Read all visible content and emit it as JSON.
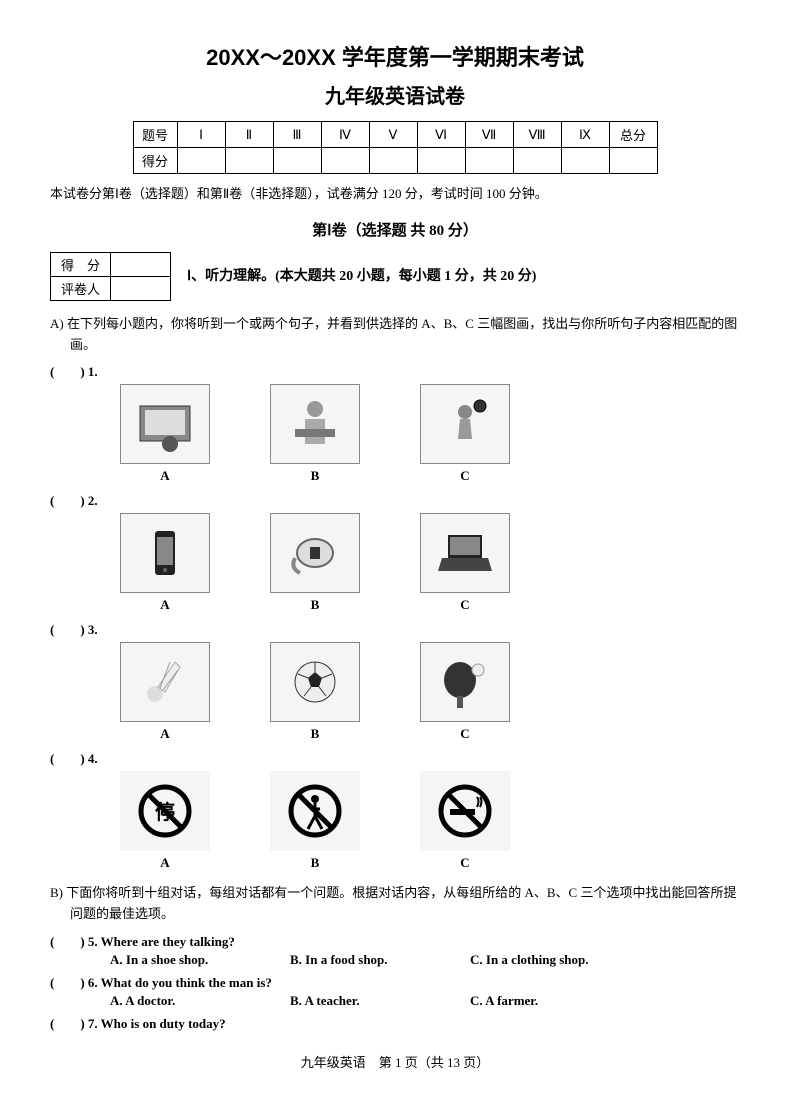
{
  "header": {
    "title_main": "20XX～20XX 学年度第一学期期末考试",
    "title_sub": "九年级英语试卷"
  },
  "score_table": {
    "row1_label": "题号",
    "cols": [
      "Ⅰ",
      "Ⅱ",
      "Ⅲ",
      "Ⅳ",
      "Ⅴ",
      "Ⅵ",
      "Ⅶ",
      "Ⅷ",
      "Ⅸ",
      "总分"
    ],
    "row2_label": "得分"
  },
  "instructions": "本试卷分第Ⅰ卷（选择题）和第Ⅱ卷（非选择题），试卷满分 120 分，考试时间 100 分钟。",
  "section1": {
    "header": "第Ⅰ卷（选择题 共 80 分）",
    "grader": {
      "score_label": "得　分",
      "reviewer_label": "评卷人"
    },
    "listening_title": "Ⅰ、听力理解。(本大题共 20 小题，每小题 1 分，共 20 分)"
  },
  "partA": {
    "desc": "A) 在下列每小题内，你将听到一个或两个句子，并看到供选择的 A、B、C 三幅图画，找出与你所听句子内容相匹配的图画。",
    "questions": [
      {
        "num": "(　　) 1.",
        "imgs": [
          "tv",
          "reading",
          "soccer"
        ],
        "labels": [
          "A",
          "B",
          "C"
        ]
      },
      {
        "num": "(　　) 2.",
        "imgs": [
          "phone",
          "watch",
          "laptop"
        ],
        "labels": [
          "A",
          "B",
          "C"
        ]
      },
      {
        "num": "(　　) 3.",
        "imgs": [
          "shuttlecock",
          "football",
          "pingpong"
        ],
        "labels": [
          "A",
          "B",
          "C"
        ]
      },
      {
        "num": "(　　) 4.",
        "imgs": [
          "no-stop",
          "no-walk",
          "no-smoke"
        ],
        "labels": [
          "A",
          "B",
          "C"
        ]
      }
    ]
  },
  "partB": {
    "desc": "B) 下面你将听到十组对话，每组对话都有一个问题。根据对话内容，从每组所给的 A、B、C 三个选项中找出能回答所提问题的最佳选项。",
    "questions": [
      {
        "num": "(　　) 5.",
        "q": "Where are they talking?",
        "options": [
          "A. In a shoe shop.",
          "B. In a food shop.",
          "C. In a clothing shop."
        ]
      },
      {
        "num": "(　　) 6.",
        "q": "What do you think the man is?",
        "options": [
          "A. A doctor.",
          "B. A teacher.",
          "C. A farmer."
        ]
      },
      {
        "num": "(　　) 7.",
        "q": "Who is on duty today?",
        "options": []
      }
    ]
  },
  "footer": "九年级英语　第 1 页（共 13 页）",
  "svg_icons": {
    "tv": "<rect x='10' y='12' width='50' height='35' fill='#888' stroke='#333'/><rect x='15' y='16' width='40' height='25' fill='#ddd'/><circle cx='40' cy='50' r='8' fill='#555'/>",
    "reading": "<circle cx='35' cy='15' r='8' fill='#999'/><rect x='25' y='25' width='20' height='25' fill='#aaa'/><rect x='15' y='35' width='40' height='8' fill='#777'/>",
    "soccer": "<circle cx='35' cy='18' r='7' fill='#888'/><path d='M30 25 L40 25 L42 45 L28 45 Z' fill='#999'/><circle cx='50' cy='12' r='6' fill='#333' stroke='#000'/>",
    "phone": "<rect x='25' y='8' width='20' height='44' rx='3' fill='#222'/><rect x='27' y='14' width='16' height='28' fill='#888'/><circle cx='35' cy='47' r='2' fill='#666'/>",
    "watch": "<ellipse cx='35' cy='30' rx='18' ry='14' fill='#ddd' stroke='#666' stroke-width='2'/><rect x='30' y='24' width='10' height='12' fill='#333'/><path d='M15 35 Q10 45 20 50' stroke='#888' stroke-width='4' fill='none'/>",
    "laptop": "<path d='M18 12 L52 12 L52 35 L18 35 Z' fill='#222'/><rect x='20' y='14' width='30' height='18' fill='#888'/><path d='M12 35 L58 35 L62 48 L8 48 Z' fill='#444'/>",
    "shuttlecock": "<circle cx='25' cy='42' r='8' fill='#ddd'/><path d='M28 35 L45 10 L50 15 L35 40 Z' fill='#eee' stroke='#aaa'/><path d='M30 36 L40 10 M33 38 L48 18' stroke='#999'/>",
    "football": "<circle cx='35' cy='30' r='20' fill='#eee' stroke='#333' stroke-width='1'/><polygon points='35,20 42,26 39,35 31,35 28,26' fill='#222'/><path d='M35 20 L35 10 M42 26 L52 22 M39 35 L46 44 M31 35 L24 44 M28 26 L18 22' stroke='#333'/>",
    "pingpong": "<ellipse cx='30' cy='28' rx='16' ry='18' fill='#333'/><rect x='27' y='44' width='6' height='12' fill='#555'/><circle cx='48' cy='18' r='6' fill='#eee' stroke='#999'/>",
    "no-stop": "<circle cx='35' cy='30' r='24' fill='none' stroke='#000' stroke-width='5'/><text x='35' y='38' font-size='20' text-anchor='middle' fill='#000' font-weight='bold'>停</text><line x1='18' y1='13' x2='52' y2='47' stroke='#000' stroke-width='5'/>",
    "no-walk": "<circle cx='35' cy='30' r='24' fill='none' stroke='#000' stroke-width='5'/><circle cx='35' cy='18' r='4' fill='#000'/><path d='M35 22 L35 35 L28 48 M35 35 L42 48 M30 28 L40 28' stroke='#000' stroke-width='3' fill='none'/><line x1='18' y1='13' x2='52' y2='47' stroke='#000' stroke-width='5'/>",
    "no-smoke": "<circle cx='35' cy='30' r='24' fill='none' stroke='#000' stroke-width='5'/><rect x='20' y='28' width='25' height='6' fill='#000'/><path d='M47 26 Q50 20 47 16 M50 26 Q53 20 50 16' stroke='#000' stroke-width='2' fill='none'/><line x1='18' y1='13' x2='52' y2='47' stroke='#000' stroke-width='5'/>"
  }
}
